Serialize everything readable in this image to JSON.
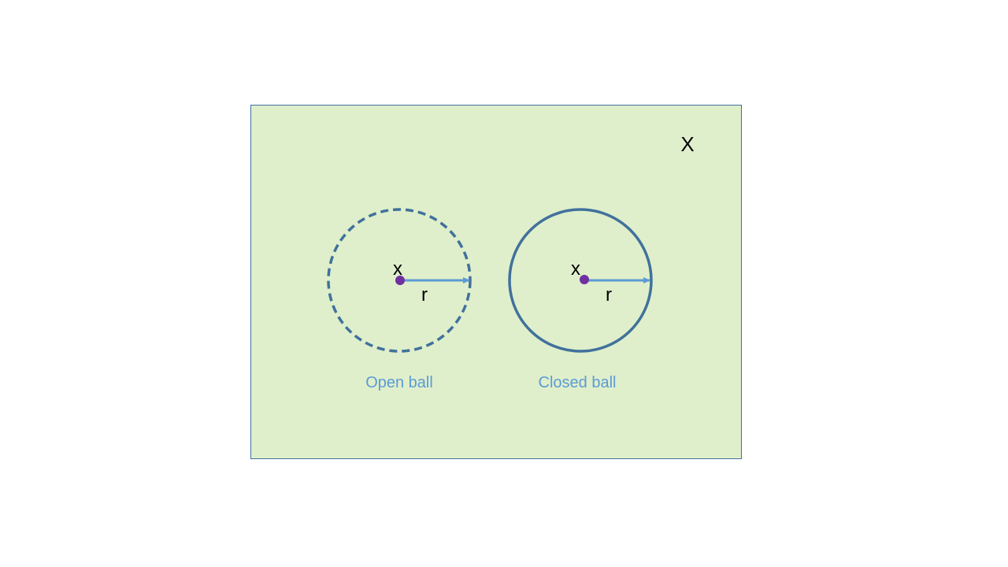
{
  "space": {
    "label": "X",
    "fill_color": "#dfefcb",
    "border_color": "#41719c"
  },
  "open_ball": {
    "center_label": "x",
    "radius_label": "r",
    "caption": "Open ball",
    "boundary": "dashed"
  },
  "closed_ball": {
    "center_label": "x",
    "radius_label": "r",
    "caption": "Closed ball",
    "boundary": "solid"
  },
  "colors": {
    "circle_stroke": "#41719c",
    "center_point": "#7030a0",
    "radius_arrow": "#5b9bd5",
    "caption_text": "#5b9bd5",
    "label_text": "#000000"
  }
}
